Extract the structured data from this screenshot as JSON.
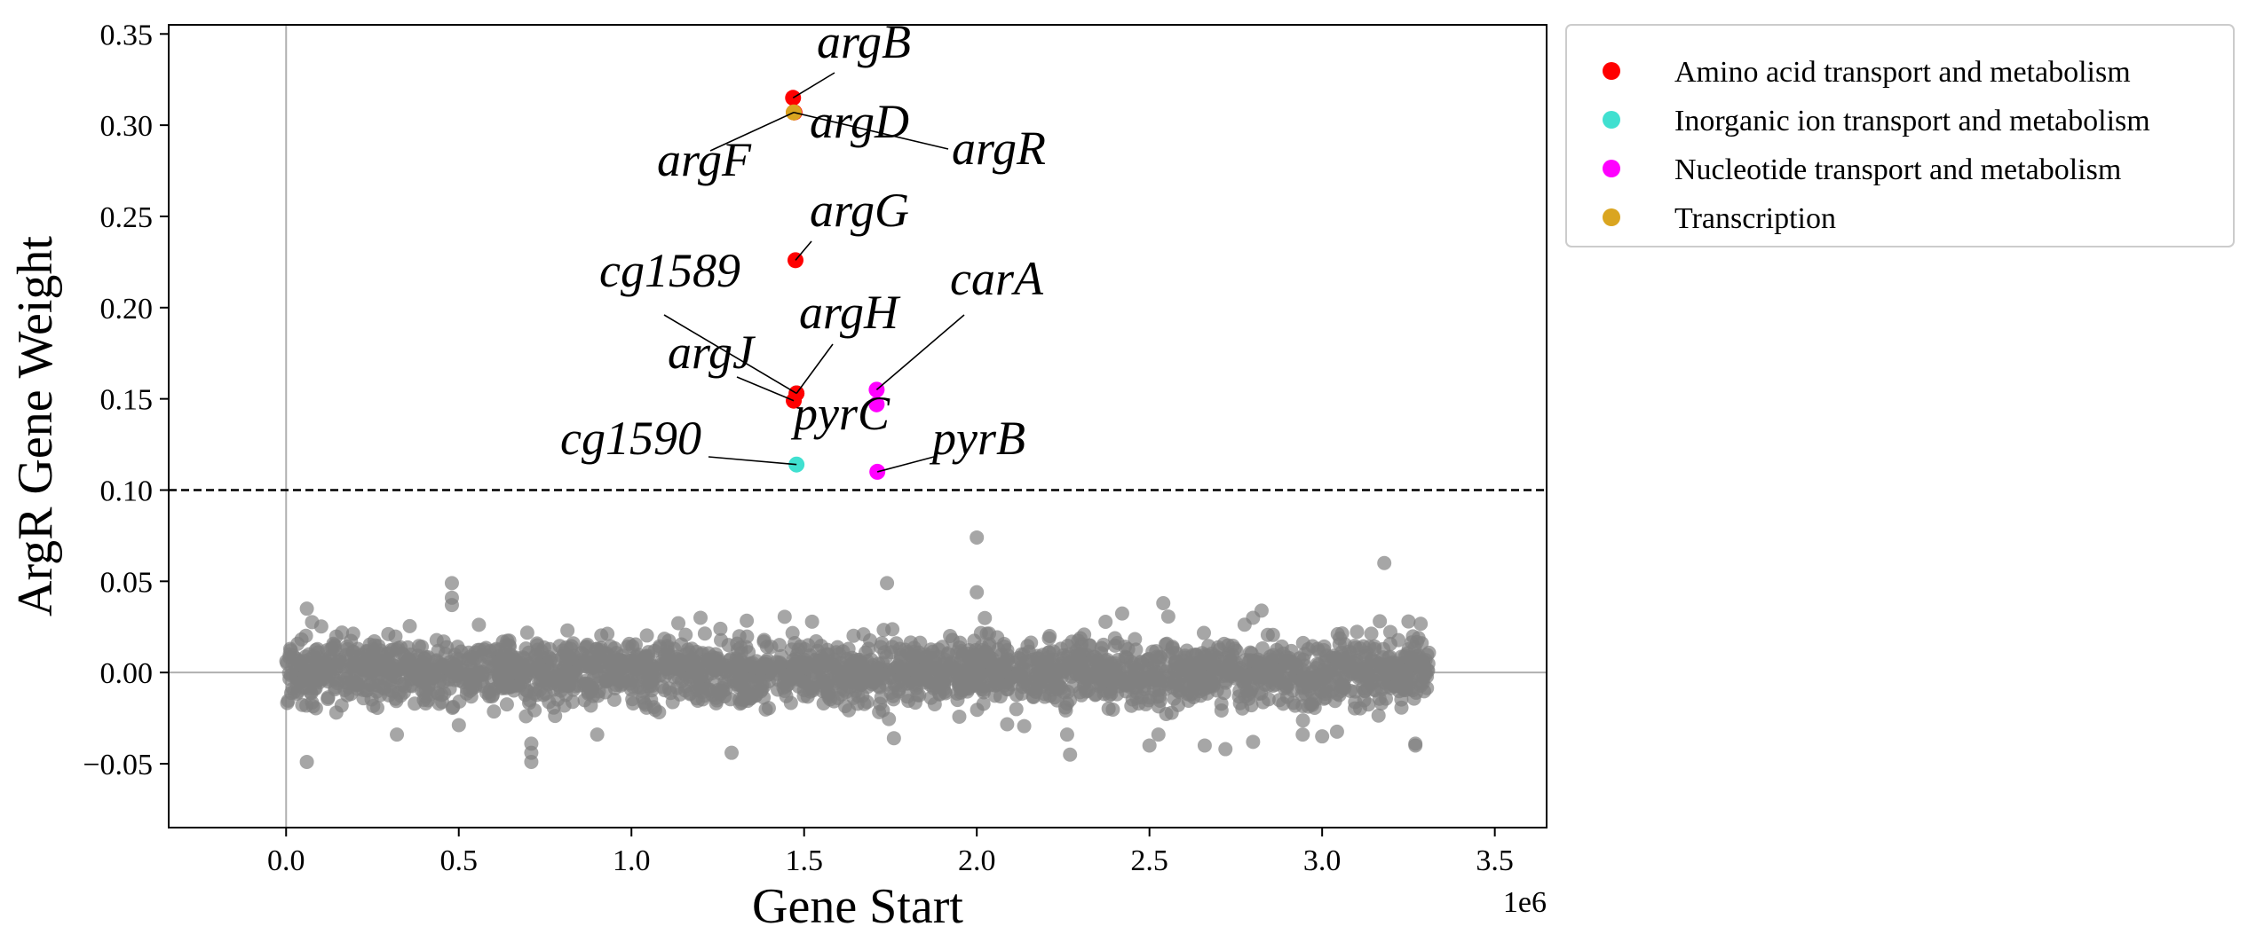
{
  "chart_data": {
    "type": "scatter",
    "title": "",
    "xlabel": "Gene Start",
    "ylabel": "ArgR Gene Weight",
    "x_offset_label": "1e6",
    "xlim": [
      -340000,
      3650000
    ],
    "ylim": [
      -0.085,
      0.355
    ],
    "x_ticks": [
      0,
      500000,
      1000000,
      1500000,
      2000000,
      2500000,
      3000000,
      3500000
    ],
    "x_tick_labels": [
      "0.0",
      "0.5",
      "1.0",
      "1.5",
      "2.0",
      "2.5",
      "3.0",
      "3.5"
    ],
    "y_ticks": [
      -0.05,
      0,
      0.05,
      0.1,
      0.15,
      0.2,
      0.25,
      0.3,
      0.35
    ],
    "y_tick_labels": [
      "−0.05",
      "0.00",
      "0.05",
      "0.10",
      "0.15",
      "0.20",
      "0.25",
      "0.30",
      "0.35"
    ],
    "threshold": 0.1,
    "grid": false,
    "legend_position": "outside-right-top",
    "colors": {
      "background_genes": "#808080",
      "Amino acid transport and metabolism": "#ff0000",
      "Inorganic ion transport and metabolism": "#40e0d0",
      "Nucleotide transport and metabolism": "#ff00ff",
      "Transcription": "#daa520"
    },
    "legend": [
      {
        "name": "Amino acid transport and metabolism",
        "color": "#ff0000"
      },
      {
        "name": "Inorganic ion transport and metabolism",
        "color": "#40e0d0"
      },
      {
        "name": "Nucleotide transport and metabolism",
        "color": "#ff00ff"
      },
      {
        "name": "Transcription",
        "color": "#daa520"
      }
    ],
    "highlighted_genes": [
      {
        "gene": "argB",
        "x": 1468000,
        "y": 0.315,
        "category": "Amino acid transport and metabolism"
      },
      {
        "gene": "argD",
        "x": 1472000,
        "y": 0.307,
        "category": "Amino acid transport and metabolism"
      },
      {
        "gene": "argF",
        "x": 1470000,
        "y": 0.307,
        "category": "Amino acid transport and metabolism"
      },
      {
        "gene": "argR",
        "x": 1470000,
        "y": 0.307,
        "category": "Transcription"
      },
      {
        "gene": "argG",
        "x": 1475000,
        "y": 0.226,
        "category": "Amino acid transport and metabolism"
      },
      {
        "gene": "cg1589",
        "x": 1478000,
        "y": 0.153,
        "category": "Inorganic ion transport and metabolism"
      },
      {
        "gene": "argH",
        "x": 1478000,
        "y": 0.153,
        "category": "Amino acid transport and metabolism"
      },
      {
        "gene": "argJ",
        "x": 1470000,
        "y": 0.149,
        "category": "Amino acid transport and metabolism"
      },
      {
        "gene": "carA",
        "x": 1710000,
        "y": 0.155,
        "category": "Nucleotide transport and metabolism"
      },
      {
        "gene": "pyrC",
        "x": 1710000,
        "y": 0.147,
        "category": "Nucleotide transport and metabolism"
      },
      {
        "gene": "cg1590",
        "x": 1478000,
        "y": 0.114,
        "category": "Inorganic ion transport and metabolism"
      },
      {
        "gene": "pyrB",
        "x": 1712000,
        "y": 0.11,
        "category": "Nucleotide transport and metabolism"
      }
    ],
    "background_outliers": [
      {
        "x": 480000,
        "y": 0.049
      },
      {
        "x": 480000,
        "y": 0.041
      },
      {
        "x": 480000,
        "y": 0.037
      },
      {
        "x": 1740000,
        "y": 0.049
      },
      {
        "x": 2000000,
        "y": 0.074
      },
      {
        "x": 2000000,
        "y": 0.044
      },
      {
        "x": 3180000,
        "y": 0.06
      },
      {
        "x": 2540000,
        "y": 0.038
      },
      {
        "x": 2800000,
        "y": 0.03
      },
      {
        "x": 3250000,
        "y": 0.028
      },
      {
        "x": 60000,
        "y": 0.035
      },
      {
        "x": 1200000,
        "y": 0.03
      },
      {
        "x": 60000,
        "y": -0.049
      },
      {
        "x": 710000,
        "y": -0.049
      },
      {
        "x": 710000,
        "y": -0.044
      },
      {
        "x": 710000,
        "y": -0.039
      },
      {
        "x": 2270000,
        "y": -0.045
      },
      {
        "x": 3270000,
        "y": -0.04
      },
      {
        "x": 2720000,
        "y": -0.042
      },
      {
        "x": 2660000,
        "y": -0.04
      },
      {
        "x": 3270000,
        "y": -0.039
      },
      {
        "x": 1290000,
        "y": -0.044
      },
      {
        "x": 1760000,
        "y": -0.036
      },
      {
        "x": 2500000,
        "y": -0.04
      },
      {
        "x": 2800000,
        "y": -0.038
      },
      {
        "x": 3000000,
        "y": -0.035
      }
    ],
    "background_genes_summary": "about 3000 genes spread uniformly from x = 0 to 3310000, y mostly between -0.03 and 0.03"
  }
}
